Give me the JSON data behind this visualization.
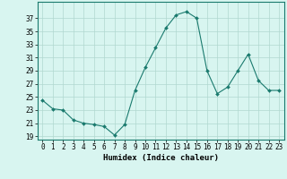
{
  "x": [
    0,
    1,
    2,
    3,
    4,
    5,
    6,
    7,
    8,
    9,
    10,
    11,
    12,
    13,
    14,
    15,
    16,
    17,
    18,
    19,
    20,
    21,
    22,
    23
  ],
  "y": [
    24.5,
    23.2,
    23.0,
    21.5,
    21.0,
    20.8,
    20.5,
    19.2,
    20.8,
    26.0,
    29.5,
    32.5,
    35.5,
    37.5,
    38.0,
    37.0,
    29.0,
    25.5,
    26.5,
    29.0,
    31.5,
    27.5,
    26.0,
    26.0
  ],
  "line_color": "#1a7a6e",
  "marker": "D",
  "marker_size": 2.0,
  "bg_color": "#d8f5f0",
  "grid_color": "#b0d8d0",
  "xlabel": "Humidex (Indice chaleur)",
  "xlim": [
    -0.5,
    23.5
  ],
  "ylim": [
    18.5,
    39.5
  ],
  "yticks": [
    19,
    21,
    23,
    25,
    27,
    29,
    31,
    33,
    35,
    37
  ],
  "xticks": [
    0,
    1,
    2,
    3,
    4,
    5,
    6,
    7,
    8,
    9,
    10,
    11,
    12,
    13,
    14,
    15,
    16,
    17,
    18,
    19,
    20,
    21,
    22,
    23
  ],
  "tick_fontsize": 5.5,
  "xlabel_fontsize": 6.5,
  "xlabel_bold": true
}
